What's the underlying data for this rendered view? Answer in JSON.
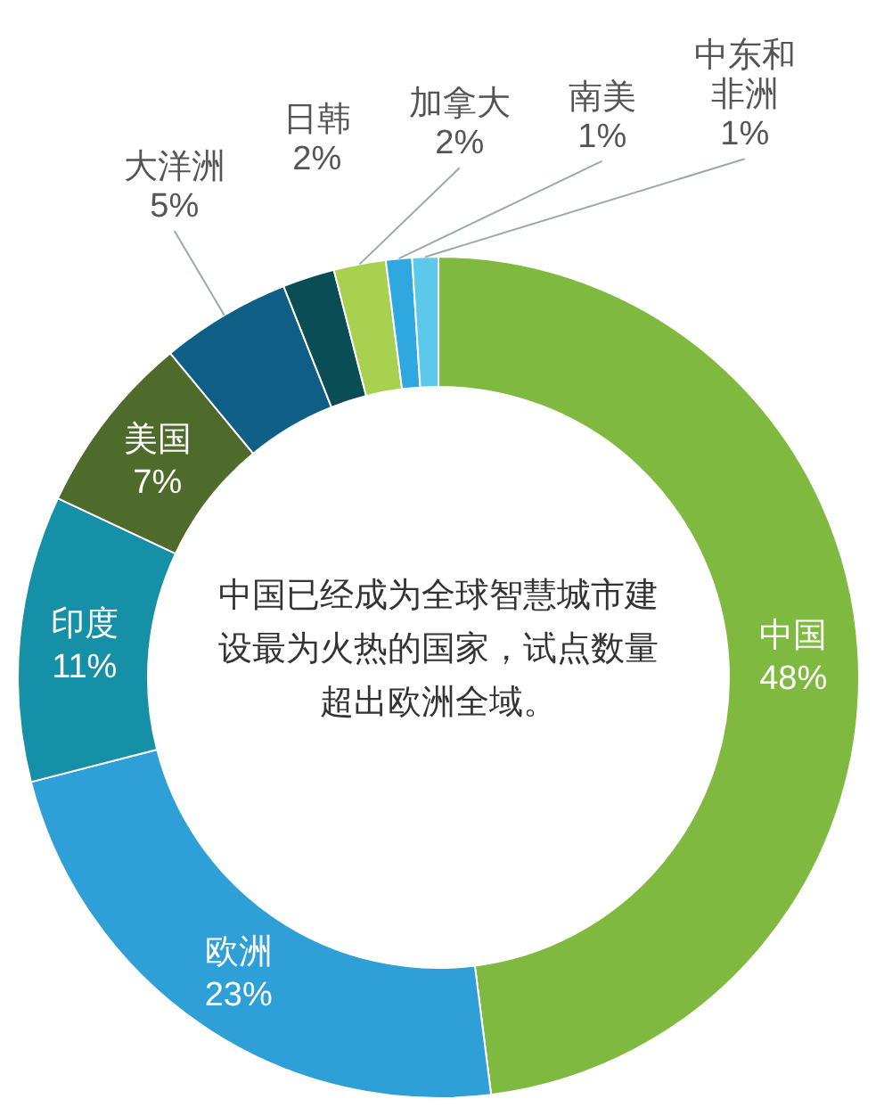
{
  "chart_data": {
    "type": "donut",
    "categories": [
      "中国",
      "欧洲",
      "印度",
      "美国",
      "大洋洲",
      "日韩",
      "加拿大",
      "南美",
      "中东和非洲"
    ],
    "values": [
      48,
      23,
      11,
      7,
      5,
      2,
      2,
      1,
      1
    ],
    "value_labels": [
      "48%",
      "23%",
      "11%",
      "7%",
      "5%",
      "2%",
      "2%",
      "1%",
      "1%"
    ],
    "colors": [
      "#80b93f",
      "#2f9fd8",
      "#1690a6",
      "#4e6b2c",
      "#0f5e86",
      "#0b4d55",
      "#a8d14f",
      "#2fa8e0",
      "#5cc8ea"
    ],
    "annotations": [
      "中国已经成为全球智慧城市建设最为火热的国家，试点数量超出欧洲全域。"
    ]
  }
}
